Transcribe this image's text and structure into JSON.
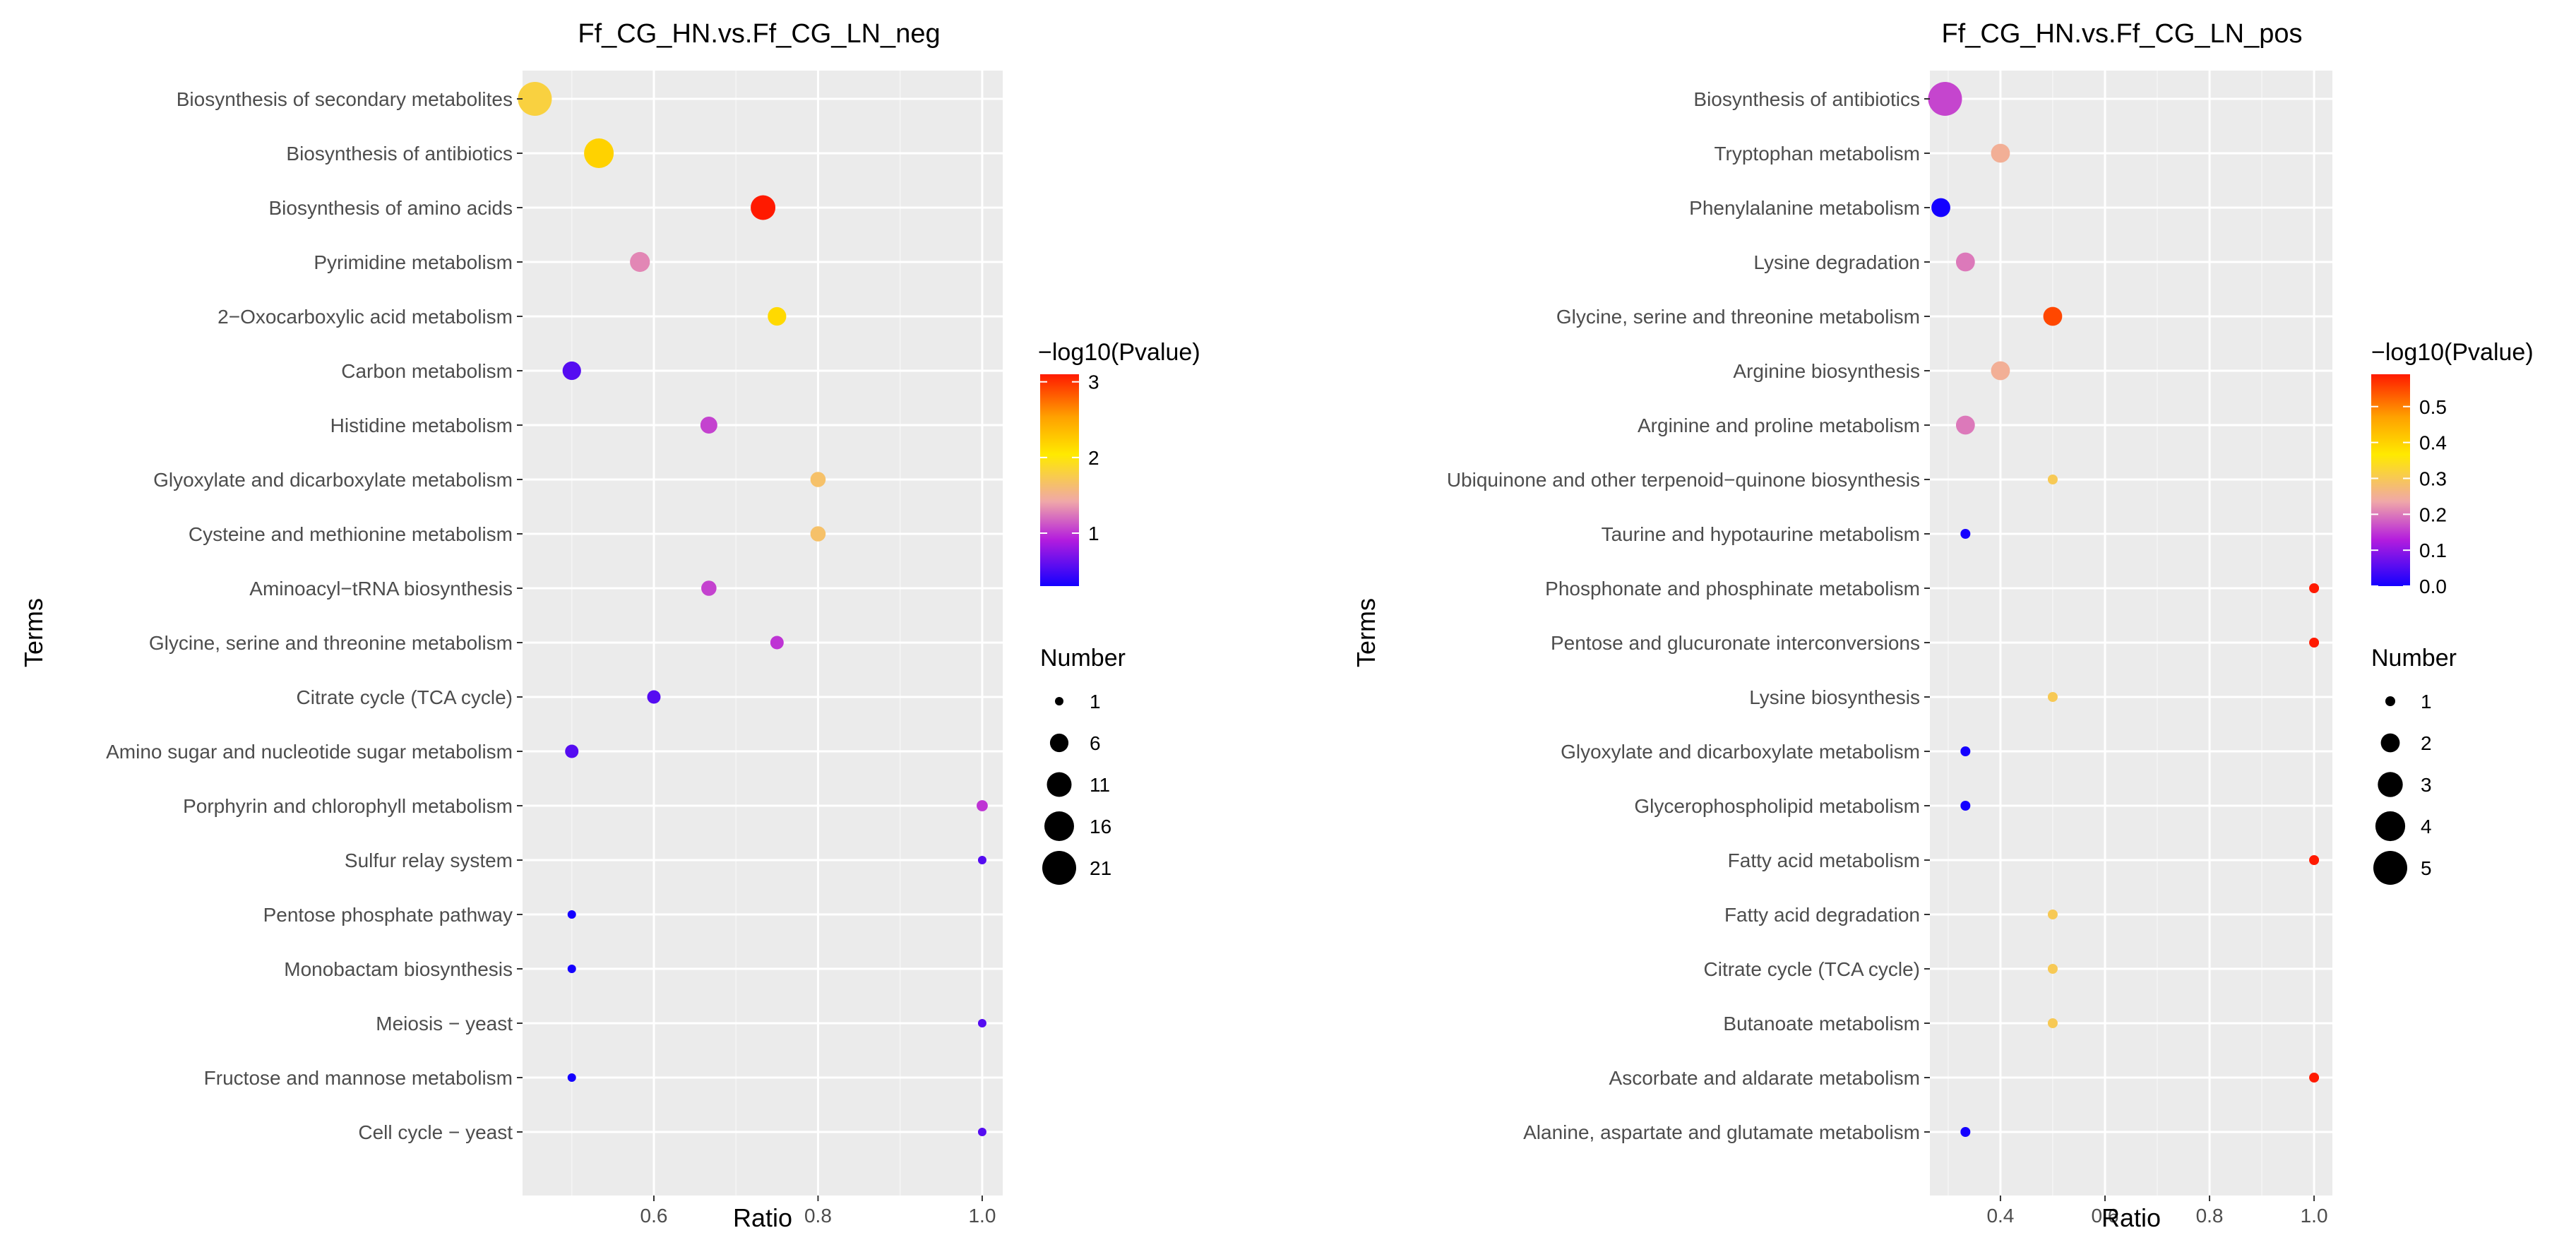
{
  "chart_data": [
    {
      "type": "scatter",
      "title": "Ff_CG_HN.vs.Ff_CG_LN_neg",
      "xlabel": "Ratio",
      "ylabel": "Terms",
      "xlim": [
        0.44,
        1.025
      ],
      "xticks": [
        0.6,
        0.8,
        1.0
      ],
      "xtick_labels": [
        "0.6",
        "0.8",
        "1.0"
      ],
      "grid": true,
      "legend_position": "right",
      "color_legend": {
        "title": "−log10(Pvalue)",
        "min": 0.3,
        "max": 3.1,
        "ticks": [
          1,
          2,
          3
        ],
        "tick_labels": [
          "1",
          "2",
          "3"
        ]
      },
      "size_legend": {
        "title": "Number",
        "range": [
          1,
          21
        ],
        "breaks": [
          1,
          6,
          11,
          16,
          21
        ],
        "labels": [
          "1",
          "6",
          "11",
          "16",
          "21"
        ]
      },
      "terms": [
        "Biosynthesis of secondary metabolites",
        "Biosynthesis of antibiotics",
        "Biosynthesis of amino acids",
        "Pyrimidine metabolism",
        "2−Oxocarboxylic acid metabolism",
        "Carbon metabolism",
        "Histidine metabolism",
        "Glyoxylate and dicarboxylate metabolism",
        "Cysteine and methionine metabolism",
        "Aminoacyl−tRNA biosynthesis",
        "Glycine, serine and threonine metabolism",
        "Citrate cycle (TCA cycle)",
        "Amino sugar and nucleotide sugar metabolism",
        "Porphyrin and chlorophyll metabolism",
        "Sulfur relay system",
        "Pentose phosphate pathway",
        "Monobactam biosynthesis",
        "Meiosis − yeast",
        "Fructose and mannose metabolism",
        "Cell cycle − yeast"
      ],
      "points": [
        {
          "ratio": 0.455,
          "number": 21,
          "neglog10p": 1.8
        },
        {
          "ratio": 0.533,
          "number": 16,
          "neglog10p": 2.2
        },
        {
          "ratio": 0.733,
          "number": 11,
          "neglog10p": 3.1
        },
        {
          "ratio": 0.583,
          "number": 7,
          "neglog10p": 1.3
        },
        {
          "ratio": 0.75,
          "number": 6,
          "neglog10p": 2.15
        },
        {
          "ratio": 0.5,
          "number": 6,
          "neglog10p": 0.55
        },
        {
          "ratio": 0.667,
          "number": 5,
          "neglog10p": 1.05
        },
        {
          "ratio": 0.8,
          "number": 4,
          "neglog10p": 1.65
        },
        {
          "ratio": 0.8,
          "number": 4,
          "neglog10p": 1.65
        },
        {
          "ratio": 0.667,
          "number": 4,
          "neglog10p": 1.05
        },
        {
          "ratio": 0.75,
          "number": 3,
          "neglog10p": 1.0
        },
        {
          "ratio": 0.6,
          "number": 3,
          "neglog10p": 0.55
        },
        {
          "ratio": 0.5,
          "number": 3,
          "neglog10p": 0.55
        },
        {
          "ratio": 1.0,
          "number": 2,
          "neglog10p": 1.0
        },
        {
          "ratio": 1.0,
          "number": 1,
          "neglog10p": 0.55
        },
        {
          "ratio": 0.5,
          "number": 1,
          "neglog10p": 0.3
        },
        {
          "ratio": 0.5,
          "number": 1,
          "neglog10p": 0.3
        },
        {
          "ratio": 1.0,
          "number": 1,
          "neglog10p": 0.55
        },
        {
          "ratio": 0.5,
          "number": 1,
          "neglog10p": 0.3
        },
        {
          "ratio": 1.0,
          "number": 1,
          "neglog10p": 0.55
        }
      ]
    },
    {
      "type": "scatter",
      "title": "Ff_CG_HN.vs.Ff_CG_LN_pos",
      "xlabel": "Ratio",
      "ylabel": "Terms",
      "xlim": [
        0.265,
        1.035
      ],
      "xticks": [
        0.4,
        0.6,
        0.8,
        1.0
      ],
      "xtick_labels": [
        "0.4",
        "0.6",
        "0.8",
        "1.0"
      ],
      "grid": true,
      "legend_position": "right",
      "color_legend": {
        "title": "−log10(Pvalue)",
        "min": 0.0,
        "max": 0.59,
        "ticks": [
          0.0,
          0.1,
          0.2,
          0.3,
          0.4,
          0.5
        ],
        "tick_labels": [
          "0.0",
          "0.1",
          "0.2",
          "0.3",
          "0.4",
          "0.5"
        ]
      },
      "size_legend": {
        "title": "Number",
        "range": [
          1,
          5
        ],
        "breaks": [
          1,
          2,
          3,
          4,
          5
        ],
        "labels": [
          "1",
          "2",
          "3",
          "4",
          "5"
        ]
      },
      "terms": [
        "Biosynthesis of antibiotics",
        "Tryptophan metabolism",
        "Phenylalanine metabolism",
        "Lysine degradation",
        "Glycine, serine and threonine metabolism",
        "Arginine biosynthesis",
        "Arginine and proline metabolism",
        "Ubiquinone and other terpenoid−quinone biosynthesis",
        "Taurine and hypotaurine metabolism",
        "Phosphonate and phosphinate metabolism",
        "Pentose and glucuronate interconversions",
        "Lysine biosynthesis",
        "Glyoxylate and dicarboxylate metabolism",
        "Glycerophospholipid metabolism",
        "Fatty acid metabolism",
        "Fatty acid degradation",
        "Citrate cycle (TCA cycle)",
        "Butanoate metabolism",
        "Ascorbate and aldarate metabolism",
        "Alanine, aspartate and glutamate metabolism"
      ],
      "points": [
        {
          "ratio": 0.294,
          "number": 5,
          "neglog10p": 0.16
        },
        {
          "ratio": 0.4,
          "number": 2,
          "neglog10p": 0.25
        },
        {
          "ratio": 0.286,
          "number": 2,
          "neglog10p": 0.0
        },
        {
          "ratio": 0.333,
          "number": 2,
          "neglog10p": 0.2
        },
        {
          "ratio": 0.5,
          "number": 2,
          "neglog10p": 0.55
        },
        {
          "ratio": 0.4,
          "number": 2,
          "neglog10p": 0.25
        },
        {
          "ratio": 0.333,
          "number": 2,
          "neglog10p": 0.2
        },
        {
          "ratio": 0.5,
          "number": 1,
          "neglog10p": 0.3
        },
        {
          "ratio": 0.333,
          "number": 1,
          "neglog10p": 0.0
        },
        {
          "ratio": 1.0,
          "number": 1,
          "neglog10p": 0.59
        },
        {
          "ratio": 1.0,
          "number": 1,
          "neglog10p": 0.59
        },
        {
          "ratio": 0.5,
          "number": 1,
          "neglog10p": 0.3
        },
        {
          "ratio": 0.333,
          "number": 1,
          "neglog10p": 0.0
        },
        {
          "ratio": 0.333,
          "number": 1,
          "neglog10p": 0.0
        },
        {
          "ratio": 1.0,
          "number": 1,
          "neglog10p": 0.59
        },
        {
          "ratio": 0.5,
          "number": 1,
          "neglog10p": 0.3
        },
        {
          "ratio": 0.5,
          "number": 1,
          "neglog10p": 0.3
        },
        {
          "ratio": 0.5,
          "number": 1,
          "neglog10p": 0.3
        },
        {
          "ratio": 1.0,
          "number": 1,
          "neglog10p": 0.59
        },
        {
          "ratio": 0.333,
          "number": 1,
          "neglog10p": 0.0
        }
      ]
    }
  ]
}
